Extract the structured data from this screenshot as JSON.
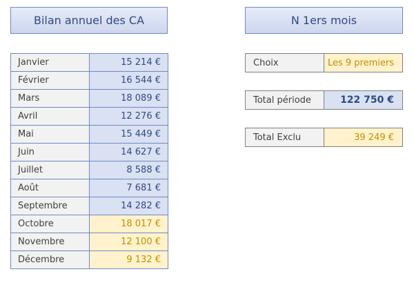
{
  "header_left": {
    "title": "Bilan annuel des CA"
  },
  "header_right": {
    "title": "N 1ers mois"
  },
  "months": [
    {
      "name": "Janvier",
      "value": "15 214 €",
      "excluded": false
    },
    {
      "name": "Février",
      "value": "16 544 €",
      "excluded": false
    },
    {
      "name": "Mars",
      "value": "18 089 €",
      "excluded": false
    },
    {
      "name": "Avril",
      "value": "12 276 €",
      "excluded": false
    },
    {
      "name": "Mai",
      "value": "15 449 €",
      "excluded": false
    },
    {
      "name": "Juin",
      "value": "14 627 €",
      "excluded": false
    },
    {
      "name": "Juillet",
      "value": "8 588 €",
      "excluded": false
    },
    {
      "name": "Août",
      "value": "7 681 €",
      "excluded": false
    },
    {
      "name": "Septembre",
      "value": "14 282 €",
      "excluded": false
    },
    {
      "name": "Octobre",
      "value": "18 017 €",
      "excluded": true
    },
    {
      "name": "Novembre",
      "value": "12 100 €",
      "excluded": true
    },
    {
      "name": "Décembre",
      "value": "9 132 €",
      "excluded": true
    }
  ],
  "choix": {
    "label": "Choix",
    "value": "Les 9 premiers"
  },
  "total_periode": {
    "label": "Total période",
    "value": "122 750 €"
  },
  "total_exclu": {
    "label": "Total Exclu",
    "value": "39 249 €"
  },
  "colors": {
    "included_fill": "#d9e1f2",
    "excluded_fill": "#fff2cc",
    "header_border": "#6f87c4",
    "accent_text": "#2f4a82",
    "excluded_text": "#bf8f00"
  }
}
